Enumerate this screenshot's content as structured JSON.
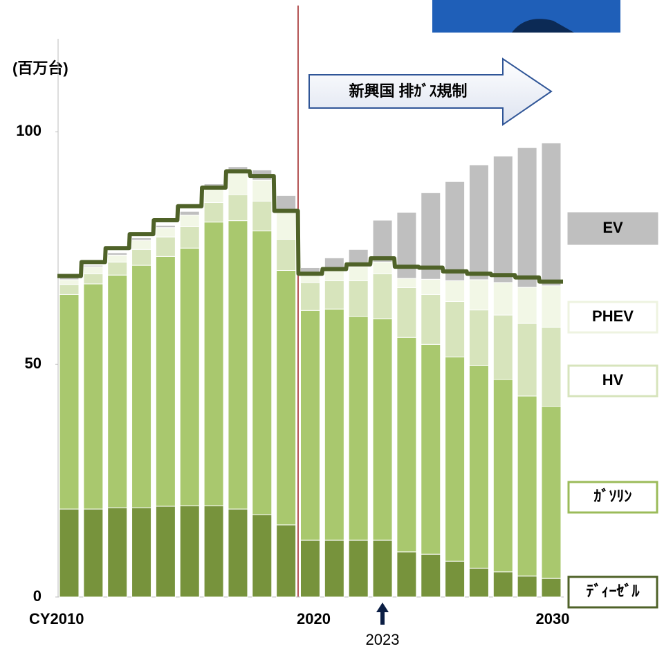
{
  "chart_data": {
    "type": "bar",
    "stacked": true,
    "y_label": "(百万台)",
    "categories": [
      "CY2010",
      null,
      null,
      null,
      null,
      null,
      null,
      null,
      null,
      null,
      "2020",
      null,
      null,
      null,
      null,
      null,
      null,
      null,
      null,
      null,
      "2030"
    ],
    "series": [
      {
        "name": "ﾃﾞｨｰｾﾞﾙ",
        "color": "#77933c",
        "values": [
          18.9,
          18.9,
          19.2,
          19.2,
          19.5,
          19.6,
          19.6,
          18.9,
          17.7,
          15.5,
          12.2,
          12.2,
          12.2,
          12.2,
          9.7,
          9.2,
          7.7,
          6.2,
          5.4,
          4.5,
          4.0
        ]
      },
      {
        "name": "ｶﾞｿﾘﾝ",
        "color": "#a9c86e",
        "values": [
          46.1,
          48.4,
          50.0,
          52.1,
          53.7,
          55.4,
          61.0,
          62.0,
          61.0,
          54.7,
          49.4,
          49.7,
          48.1,
          47.6,
          46.1,
          45.1,
          43.9,
          43.6,
          41.4,
          38.7,
          37.0
        ]
      },
      {
        "name": "HV",
        "color": "#d7e4bc",
        "values": [
          2.2,
          2.2,
          2.8,
          3.4,
          4.2,
          4.6,
          4.2,
          5.6,
          6.4,
          6.7,
          6.0,
          6.1,
          7.7,
          9.7,
          10.7,
          10.7,
          11.9,
          11.9,
          13.8,
          15.6,
          17.0
        ]
      },
      {
        "name": "PHEV",
        "color": "#f2f7e6",
        "values": [
          1.0,
          1.5,
          1.5,
          2.0,
          2.0,
          2.5,
          3.5,
          4.8,
          4.5,
          5.8,
          1.5,
          2.6,
          3.0,
          2.5,
          2.0,
          3.3,
          4.5,
          6.5,
          7.0,
          7.8,
          8.9
        ]
      },
      {
        "name": "EV",
        "color": "#bfbfbf",
        "values": [
          0.5,
          0.3,
          0.5,
          0.5,
          0.5,
          0.8,
          0.5,
          1.2,
          2.2,
          3.6,
          1.7,
          2.3,
          3.7,
          9.0,
          14.2,
          18.6,
          21.3,
          24.7,
          27.2,
          30.0,
          30.7
        ]
      }
    ],
    "line": {
      "color": "#4f6228",
      "values": [
        69,
        72,
        75,
        78,
        81,
        84,
        88,
        91.5,
        90.5,
        83,
        69.5,
        70.5,
        71.5,
        72.8,
        71,
        70.8,
        70,
        69.5,
        69.2,
        68.7,
        67.8
      ]
    },
    "ylim": [
      0,
      120
    ],
    "yticks": [
      0,
      50,
      100
    ],
    "annotations": [
      {
        "text": "新興国 排ｶﾞｽ規制"
      },
      {
        "text": "2023"
      }
    ]
  }
}
